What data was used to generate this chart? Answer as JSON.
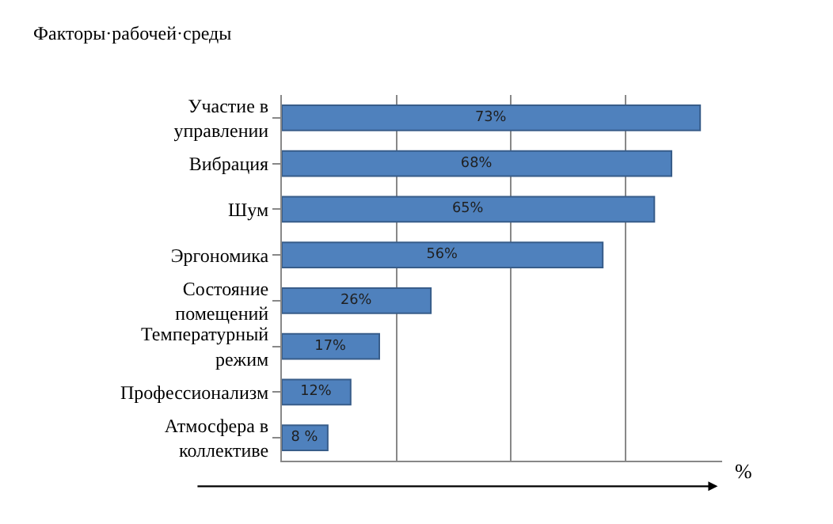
{
  "chart_data": {
    "type": "bar",
    "orientation": "horizontal",
    "title": "Факторы·рабочей·среды",
    "xlabel": "%",
    "categories": [
      "Участие в управлении",
      "Вибрация",
      "Шум",
      "Эргономика",
      "Состояние помещений",
      "Температурный режим",
      "Профессионализм",
      "Атмосфера в коллективе"
    ],
    "values": [
      73,
      68,
      65,
      56,
      26,
      17,
      12,
      8
    ],
    "value_labels": [
      "73%",
      "68%",
      "65%",
      "56%",
      "26%",
      "17%",
      "12%",
      "8 %"
    ],
    "color": "#4f81bd",
    "grid": "x",
    "tick_labels": "y",
    "legend": false
  }
}
